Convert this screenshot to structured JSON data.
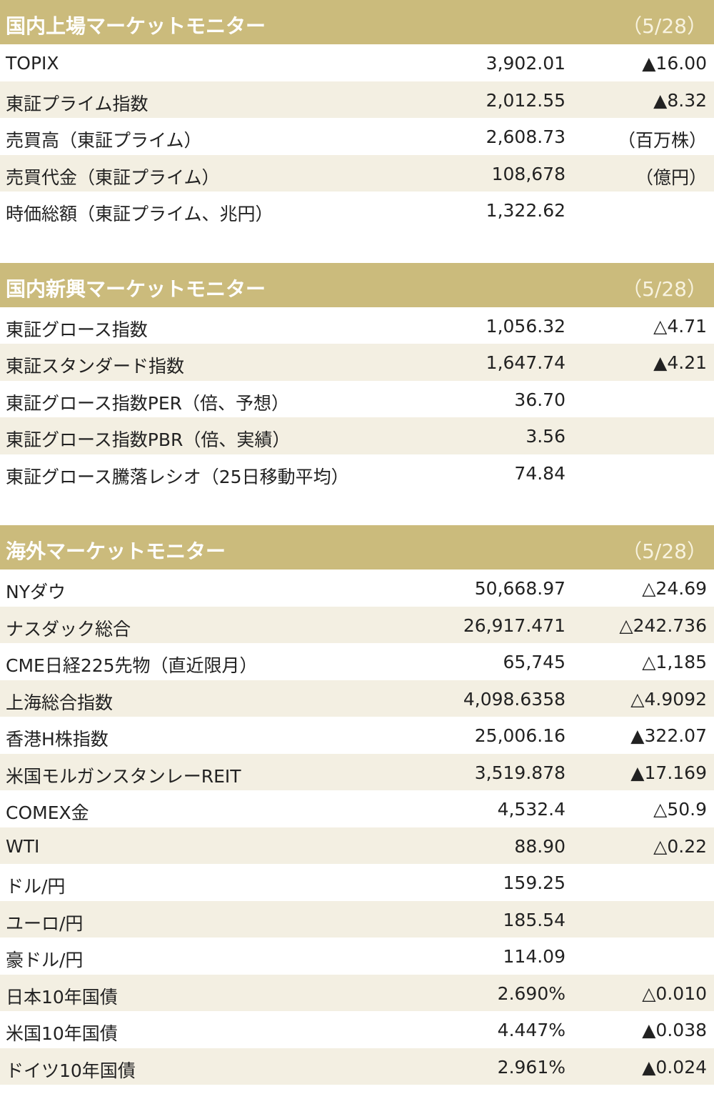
{
  "sections": [
    {
      "title": "国内上場マーケットモニター",
      "date": "（5/28）",
      "rows": [
        {
          "label": "TOPIX",
          "value": "3,902.01",
          "change": "▲16.00"
        },
        {
          "label": "東証プライム指数",
          "value": "2,012.55",
          "change": "▲8.32"
        },
        {
          "label": "売買高（東証プライム）",
          "value": "2,608.73",
          "change": "（百万株）"
        },
        {
          "label": "売買代金（東証プライム）",
          "value": "108,678",
          "change": "（億円）"
        },
        {
          "label": "時価総額（東証プライム、兆円）",
          "value": "1,322.62"
        }
      ]
    },
    {
      "title": "国内新興マーケットモニター",
      "date": "（5/28）",
      "rows": [
        {
          "label": "東証グロース指数",
          "value": "1,056.32",
          "change": "△4.71"
        },
        {
          "label": "東証スタンダード指数",
          "value": "1,647.74",
          "change": "▲4.21"
        },
        {
          "label": "東証グロース指数PER（倍、予想）",
          "value": "36.70"
        },
        {
          "label": "東証グロース指数PBR（倍、実績）",
          "value": "3.56"
        },
        {
          "label": "東証グロース騰落レシオ（25日移動平均）",
          "value": "74.84"
        }
      ]
    },
    {
      "title": "海外マーケットモニター",
      "date": "（5/28）",
      "rows": [
        {
          "label": "NYダウ",
          "value": "50,668.97",
          "change": "△24.69"
        },
        {
          "label": "ナスダック総合",
          "value": "26,917.471",
          "change": "△242.736"
        },
        {
          "label": "CME日経225先物（直近限月）",
          "value": "65,745",
          "change": "△1,185"
        },
        {
          "label": "上海総合指数",
          "value": "4,098.6358",
          "change": "△4.9092"
        },
        {
          "label": "香港H株指数",
          "value": "25,006.16",
          "change": "▲322.07"
        },
        {
          "label": "米国モルガンスタンレーREIT",
          "value": "3,519.878",
          "change": "▲17.169"
        },
        {
          "label": "COMEX金",
          "value": "4,532.4",
          "change": "△50.9"
        },
        {
          "label": "WTI",
          "value": "88.90",
          "change": "△0.22"
        },
        {
          "label": "ドル/円",
          "value": "159.25"
        },
        {
          "label": "ユーロ/円",
          "value": "185.54"
        },
        {
          "label": "豪ドル/円",
          "value": "114.09"
        },
        {
          "label": "日本10年国債",
          "value": "2.690%",
          "change": "△0.010"
        },
        {
          "label": "米国10年国債",
          "value": "4.447%",
          "change": "▲0.038"
        },
        {
          "label": "ドイツ10年国債",
          "value": "2.961%",
          "change": "▲0.024"
        }
      ]
    }
  ]
}
